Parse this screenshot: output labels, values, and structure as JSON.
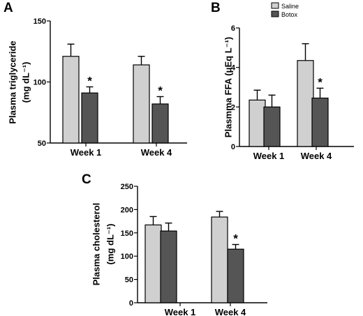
{
  "legend": [
    {
      "name": "Saline",
      "color": "#d0d0d0"
    },
    {
      "name": "Botox",
      "color": "#555555"
    }
  ],
  "chart_data": [
    {
      "panel": "A",
      "type": "bar",
      "ylabel_line1": "Plasma triglyceride",
      "ylabel_line2": "(mg dL⁻¹)",
      "categories": [
        "Week 1",
        "Week 4"
      ],
      "ylim": [
        50,
        150
      ],
      "yticks": [
        50,
        100,
        150
      ],
      "series": [
        {
          "name": "Saline",
          "values": [
            121,
            114
          ],
          "errors": [
            10,
            7
          ]
        },
        {
          "name": "Botox",
          "values": [
            91,
            82
          ],
          "errors": [
            5,
            6
          ]
        }
      ],
      "significance": [
        {
          "series": 1,
          "category": 0,
          "label": "*"
        },
        {
          "series": 1,
          "category": 1,
          "label": "*"
        }
      ]
    },
    {
      "panel": "B",
      "type": "bar",
      "ylabel_line1": "Plasmma FFA (μEq L⁻¹)",
      "ylabel_line2": "",
      "categories": [
        "Week 1",
        "Week 4"
      ],
      "ylim": [
        0,
        6
      ],
      "yticks": [
        0,
        2,
        4,
        6
      ],
      "series": [
        {
          "name": "Saline",
          "values": [
            2.35,
            4.35
          ],
          "errors": [
            0.5,
            0.85
          ]
        },
        {
          "name": "Botox",
          "values": [
            2.0,
            2.45
          ],
          "errors": [
            0.6,
            0.5
          ]
        }
      ],
      "significance": [
        {
          "series": 1,
          "category": 1,
          "label": "*"
        }
      ]
    },
    {
      "panel": "C",
      "type": "bar",
      "ylabel_line1": "Plasma cholesterol",
      "ylabel_line2": "(mg dL⁻¹)",
      "categories": [
        "Week 1",
        "Week 4"
      ],
      "ylim": [
        0,
        250
      ],
      "yticks": [
        0,
        50,
        100,
        150,
        200,
        250
      ],
      "series": [
        {
          "name": "Saline",
          "values": [
            167,
            184
          ],
          "errors": [
            18,
            12
          ]
        },
        {
          "name": "Botox",
          "values": [
            154,
            115
          ],
          "errors": [
            17,
            10
          ]
        }
      ],
      "significance": [
        {
          "series": 1,
          "category": 1,
          "label": "*"
        }
      ]
    }
  ]
}
